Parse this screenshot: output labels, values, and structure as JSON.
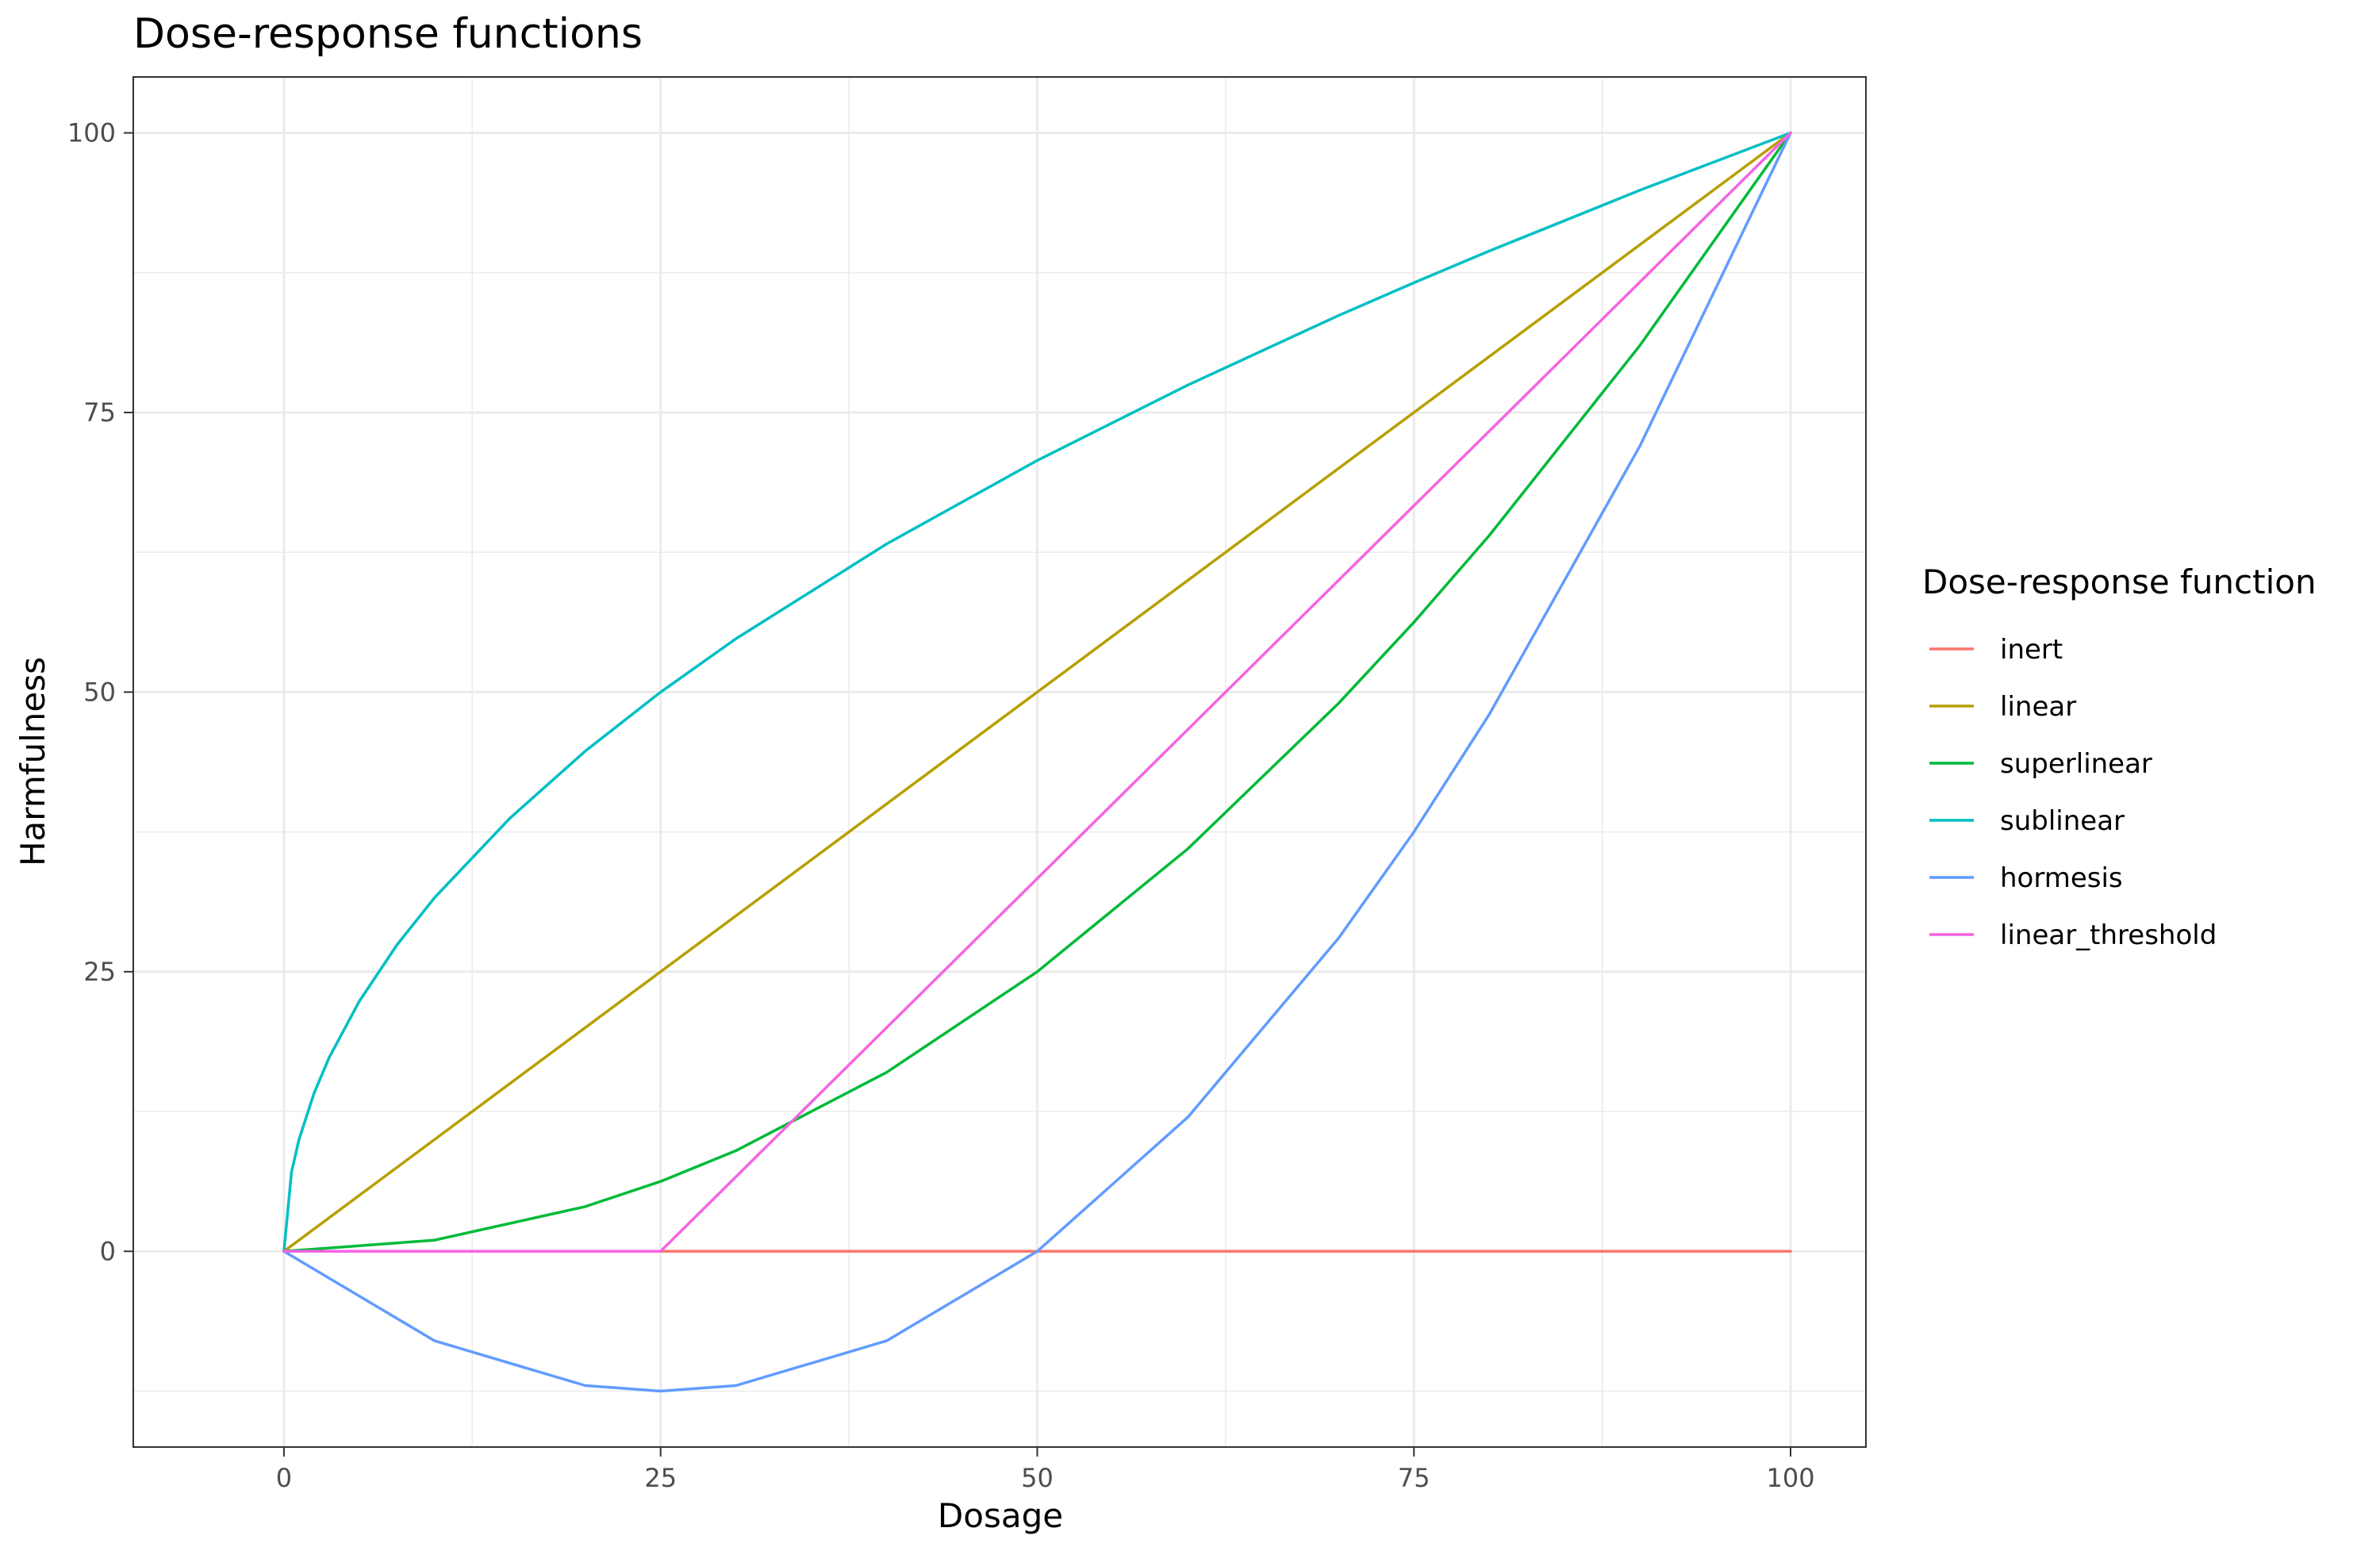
{
  "chart_data": {
    "type": "line",
    "title": "Dose-response functions",
    "xlabel": "Dosage",
    "ylabel": "Harmfulness",
    "xlim": [
      -10,
      105
    ],
    "ylim": [
      -17.5,
      105
    ],
    "x_ticks": [
      0,
      25,
      50,
      75,
      100
    ],
    "y_ticks": [
      0,
      25,
      50,
      75,
      100
    ],
    "grid": true,
    "legend_title": "Dose-response function",
    "legend_position": "right",
    "series": [
      {
        "name": "inert",
        "color": "#F8766D",
        "points": [
          [
            0,
            0
          ],
          [
            100,
            0
          ]
        ]
      },
      {
        "name": "linear",
        "color": "#B79F00",
        "points": [
          [
            0,
            0
          ],
          [
            100,
            100
          ]
        ]
      },
      {
        "name": "superlinear",
        "color": "#00BA38",
        "points": [
          [
            0,
            0
          ],
          [
            10,
            1
          ],
          [
            20,
            4
          ],
          [
            25,
            6.25
          ],
          [
            30,
            9
          ],
          [
            40,
            16
          ],
          [
            50,
            25
          ],
          [
            60,
            36
          ],
          [
            70,
            49
          ],
          [
            75,
            56.25
          ],
          [
            80,
            64
          ],
          [
            90,
            81
          ],
          [
            100,
            100
          ]
        ]
      },
      {
        "name": "sublinear",
        "color": "#00BFC4",
        "points": [
          [
            0,
            0
          ],
          [
            0.5,
            7.07
          ],
          [
            1,
            10
          ],
          [
            2,
            14.14
          ],
          [
            3,
            17.32
          ],
          [
            5,
            22.36
          ],
          [
            7.5,
            27.39
          ],
          [
            10,
            31.62
          ],
          [
            15,
            38.73
          ],
          [
            20,
            44.72
          ],
          [
            25,
            50
          ],
          [
            30,
            54.77
          ],
          [
            40,
            63.25
          ],
          [
            50,
            70.71
          ],
          [
            60,
            77.46
          ],
          [
            70,
            83.67
          ],
          [
            75,
            86.6
          ],
          [
            80,
            89.44
          ],
          [
            90,
            94.87
          ],
          [
            100,
            100
          ]
        ]
      },
      {
        "name": "hormesis",
        "color": "#619CFF",
        "points": [
          [
            0,
            0
          ],
          [
            10,
            -8
          ],
          [
            20,
            -12
          ],
          [
            25,
            -12.5
          ],
          [
            30,
            -12
          ],
          [
            40,
            -8
          ],
          [
            50,
            0
          ],
          [
            60,
            12
          ],
          [
            70,
            28
          ],
          [
            75,
            37.5
          ],
          [
            80,
            48
          ],
          [
            90,
            72
          ],
          [
            100,
            100
          ]
        ]
      },
      {
        "name": "linear_threshold",
        "color": "#F564E3",
        "points": [
          [
            0,
            0
          ],
          [
            25,
            0
          ],
          [
            100,
            100
          ]
        ]
      }
    ]
  }
}
